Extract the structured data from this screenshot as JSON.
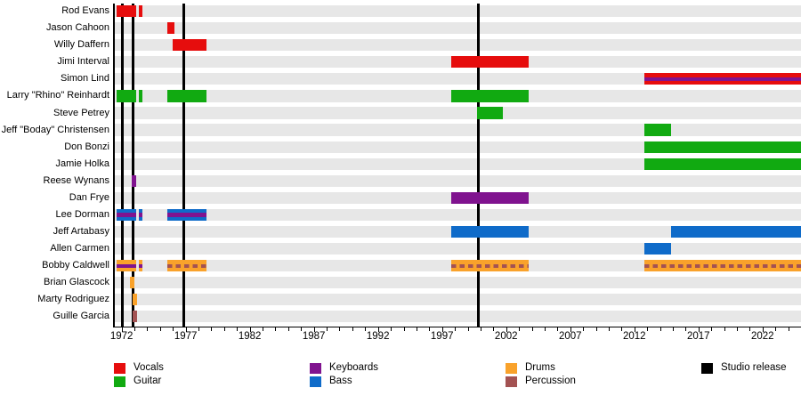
{
  "chart_data": {
    "type": "timeline",
    "description": "Band members timeline (gantt-style), roles shown by color, studio releases shown as vertical black lines",
    "x_axis": {
      "min": 1971.4,
      "max": 2025.0,
      "labeled_ticks": [
        "1972",
        "1977",
        "1982",
        "1987",
        "1992",
        "1997",
        "2002",
        "2007",
        "2012",
        "2017",
        "2022"
      ],
      "labeled_tick_years": [
        1972,
        1977,
        1982,
        1987,
        1992,
        1997,
        2002,
        2007,
        2012,
        2017,
        2022
      ],
      "minor_tick_interval": 1
    },
    "colors": {
      "vocals": "#E60D0D",
      "guitar": "#11AA11",
      "keyboards": "#80138F",
      "bass": "#0F6BC9",
      "drums": "#F9A22B",
      "percussion": "#A35252",
      "studio_release": "#000000",
      "row_band": "#E7E7E7"
    },
    "studio_release_lines": [
      1972.03,
      1972.88,
      1976.88,
      1999.83
    ],
    "legend": {
      "items": [
        {
          "label": "Vocals",
          "color": "vocals",
          "col": 0,
          "row": 0
        },
        {
          "label": "Guitar",
          "color": "guitar",
          "col": 0,
          "row": 1
        },
        {
          "label": "Keyboards",
          "color": "keyboards",
          "col": 1,
          "row": 0
        },
        {
          "label": "Bass",
          "color": "bass",
          "col": 1,
          "row": 1
        },
        {
          "label": "Drums",
          "color": "drums",
          "col": 2,
          "row": 0
        },
        {
          "label": "Percussion",
          "color": "percussion",
          "col": 2,
          "row": 1
        },
        {
          "label": "Studio release",
          "color": "studio_release",
          "col": 3,
          "row": 0
        }
      ]
    },
    "members": [
      {
        "name": "Rod Evans",
        "bars": [
          {
            "start": 1971.62,
            "end": 1973.14,
            "color": "vocals"
          },
          {
            "start": 1973.32,
            "end": 1973.63,
            "color": "vocals"
          }
        ]
      },
      {
        "name": "Jason Cahoon",
        "bars": [
          {
            "start": 1975.57,
            "end": 1976.09,
            "color": "vocals"
          }
        ]
      },
      {
        "name": "Willy Daffern",
        "bars": [
          {
            "start": 1975.99,
            "end": 1978.62,
            "color": "vocals"
          }
        ]
      },
      {
        "name": "Jimi Interval",
        "bars": [
          {
            "start": 1997.69,
            "end": 2003.79,
            "color": "vocals"
          }
        ]
      },
      {
        "name": "Simon Lind",
        "bars": [
          {
            "start": 2012.81,
            "end": 2025.0,
            "color": "vocals",
            "stripe": "keyboards"
          }
        ]
      },
      {
        "name": "Larry \"Rhino\" Reinhardt",
        "bars": [
          {
            "start": 1971.62,
            "end": 1973.14,
            "color": "guitar"
          },
          {
            "start": 1973.32,
            "end": 1973.63,
            "color": "guitar"
          },
          {
            "start": 1975.57,
            "end": 1978.62,
            "color": "guitar"
          },
          {
            "start": 1997.69,
            "end": 2003.79,
            "color": "guitar"
          }
        ]
      },
      {
        "name": "Steve Petrey",
        "bars": [
          {
            "start": 1999.7,
            "end": 2001.71,
            "color": "guitar"
          }
        ]
      },
      {
        "name": "Jeff \"Boday\" Christensen",
        "bars": [
          {
            "start": 2012.81,
            "end": 2014.89,
            "color": "guitar"
          }
        ]
      },
      {
        "name": "Don Bonzi",
        "bars": [
          {
            "start": 2012.81,
            "end": 2025.0,
            "color": "guitar"
          }
        ]
      },
      {
        "name": "Jamie Holka",
        "bars": [
          {
            "start": 2012.81,
            "end": 2025.0,
            "color": "guitar"
          }
        ]
      },
      {
        "name": "Reese Wynans",
        "bars": [
          {
            "start": 1972.8,
            "end": 1973.11,
            "color": "keyboards"
          }
        ]
      },
      {
        "name": "Dan Frye",
        "bars": [
          {
            "start": 1997.69,
            "end": 2003.79,
            "color": "keyboards"
          }
        ]
      },
      {
        "name": "Lee Dorman",
        "bars": [
          {
            "start": 1971.62,
            "end": 1973.14,
            "color": "bass",
            "stripe": "keyboards"
          },
          {
            "start": 1973.32,
            "end": 1973.63,
            "color": "bass",
            "stripe": "keyboards"
          },
          {
            "start": 1975.57,
            "end": 1978.62,
            "color": "bass",
            "stripe": "keyboards"
          }
        ]
      },
      {
        "name": "Jeff Artabasy",
        "bars": [
          {
            "start": 1997.69,
            "end": 2003.79,
            "color": "bass"
          },
          {
            "start": 2014.89,
            "end": 2025.0,
            "color": "bass"
          }
        ]
      },
      {
        "name": "Allen Carmen",
        "bars": [
          {
            "start": 2012.81,
            "end": 2014.89,
            "color": "bass"
          }
        ]
      },
      {
        "name": "Bobby Caldwell",
        "bars": [
          {
            "start": 1971.62,
            "end": 1973.14,
            "color": "drums",
            "stripe": "keyboards"
          },
          {
            "start": 1973.32,
            "end": 1973.63,
            "color": "drums",
            "stripe": "keyboards"
          },
          {
            "start": 1975.57,
            "end": 1978.62,
            "color": "drums",
            "stripe": "percussion",
            "stripe_style": "dashed"
          },
          {
            "start": 1997.69,
            "end": 2003.79,
            "color": "drums",
            "stripe": "percussion",
            "stripe_style": "dashed"
          },
          {
            "start": 2012.81,
            "end": 2025.0,
            "color": "drums",
            "stripe": "percussion",
            "stripe_style": "dashed"
          }
        ]
      },
      {
        "name": "Brian Glascock",
        "bars": [
          {
            "start": 1972.66,
            "end": 1972.97,
            "color": "drums"
          }
        ]
      },
      {
        "name": "Marty Rodriguez",
        "bars": [
          {
            "start": 1972.87,
            "end": 1973.21,
            "color": "drums"
          }
        ]
      },
      {
        "name": "Guille Garcia",
        "bars": [
          {
            "start": 1972.87,
            "end": 1973.21,
            "color": "percussion"
          }
        ]
      }
    ]
  }
}
